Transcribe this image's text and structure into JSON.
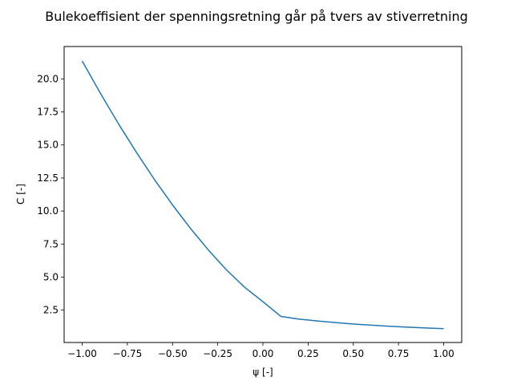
{
  "chart_data": {
    "type": "line",
    "title": "Bulekoeffisient der spenningsretning går på tvers av stiverretning",
    "xlabel": "ψ [-]",
    "ylabel": "C [-]",
    "xlim": [
      -1.1,
      1.1
    ],
    "ylim": [
      0.05,
      22.45
    ],
    "grid": false,
    "x_ticks": [
      -1.0,
      -0.75,
      -0.5,
      -0.25,
      0.0,
      0.25,
      0.5,
      0.75,
      1.0
    ],
    "x_tick_labels": [
      "−1.00",
      "−0.75",
      "−0.50",
      "−0.25",
      "0.00",
      "0.25",
      "0.50",
      "0.75",
      "1.00"
    ],
    "y_ticks": [
      2.5,
      5.0,
      7.5,
      10.0,
      12.5,
      15.0,
      17.5,
      20.0
    ],
    "y_tick_labels": [
      "2.5",
      "5.0",
      "7.5",
      "10.0",
      "12.5",
      "15.0",
      "17.5",
      "20.0"
    ],
    "series": [
      {
        "color": "#1f77b4",
        "x": [
          -1.0,
          -0.9,
          -0.8,
          -0.7,
          -0.6,
          -0.5,
          -0.4,
          -0.3,
          -0.2,
          -0.1,
          0.0,
          0.1,
          0.2,
          0.3,
          0.4,
          0.5,
          0.6,
          0.7,
          0.8,
          0.9,
          1.0
        ],
        "y": [
          21.35,
          18.93,
          16.62,
          14.44,
          12.38,
          10.46,
          8.67,
          7.02,
          5.52,
          4.22,
          3.14,
          2.02,
          1.82,
          1.68,
          1.56,
          1.45,
          1.36,
          1.28,
          1.21,
          1.15,
          1.1
        ]
      }
    ]
  }
}
